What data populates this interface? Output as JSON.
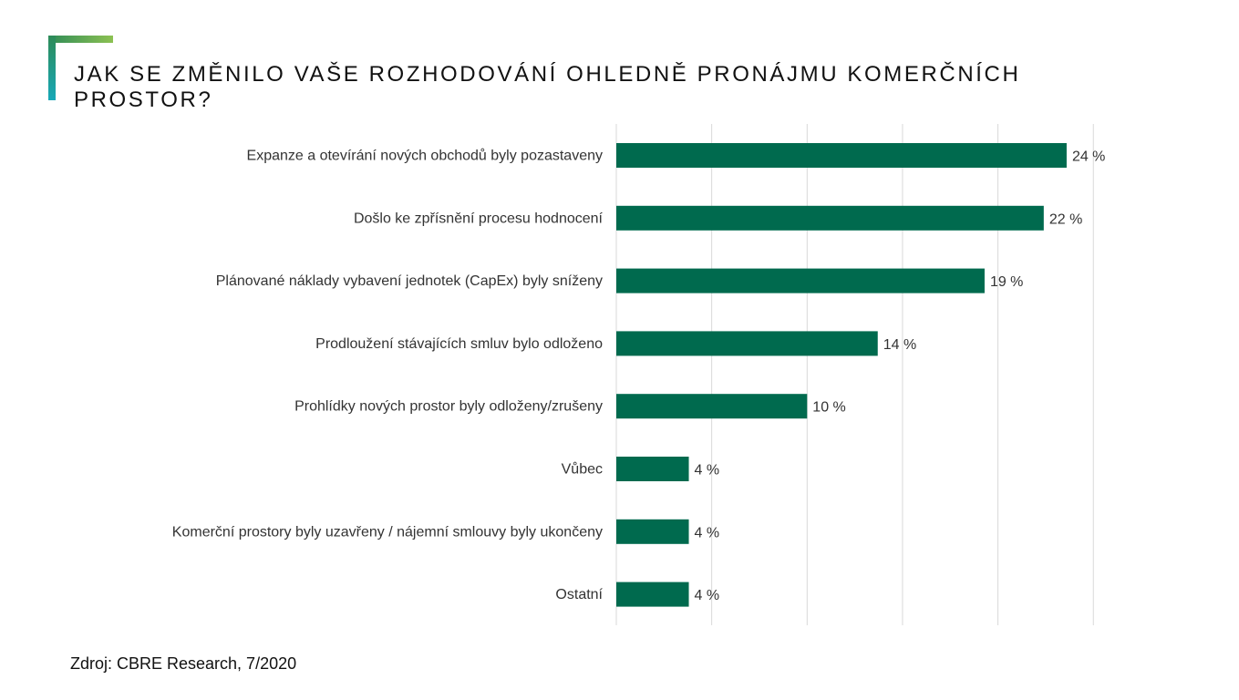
{
  "slide": {
    "title": "JAK SE ZMĚNILO VAŠE ROZHODOVÁNÍ OHLEDNĚ PRONÁJMU KOMERČNÍCH PROSTOR?",
    "source": "Zdroj: CBRE Research, 7/2020",
    "accent_colors": [
      "#2e8b57",
      "#8cc152",
      "#17a8b8"
    ]
  },
  "chart_data": {
    "type": "bar",
    "orientation": "horizontal",
    "title": "",
    "xlabel": "",
    "ylabel": "",
    "xlim": [
      0,
      25
    ],
    "grid": true,
    "legend": "none",
    "bar_color": "#006a4e",
    "value_suffix": " %",
    "categories": [
      "Expanze a otevírání nových obchodů byly pozastaveny",
      "Došlo ke zpřísnění procesu hodnocení",
      "Plánované náklady vybavení jednotek (CapEx) byly sníženy",
      "Prodloužení stávajících smluv bylo odloženo",
      "Prohlídky nových prostor byly odloženy/zrušeny",
      "Vůbec",
      "Komerční prostory byly uzavřeny / nájemní smlouvy byly ukončeny",
      "Ostatní"
    ],
    "values": [
      23.6,
      22.4,
      19.3,
      13.7,
      10.0,
      3.8,
      3.8,
      3.8
    ],
    "data_labels": [
      "24 %",
      "22 %",
      "19 %",
      "14 %",
      "10 %",
      "4 %",
      "4 %",
      "4 %"
    ]
  }
}
